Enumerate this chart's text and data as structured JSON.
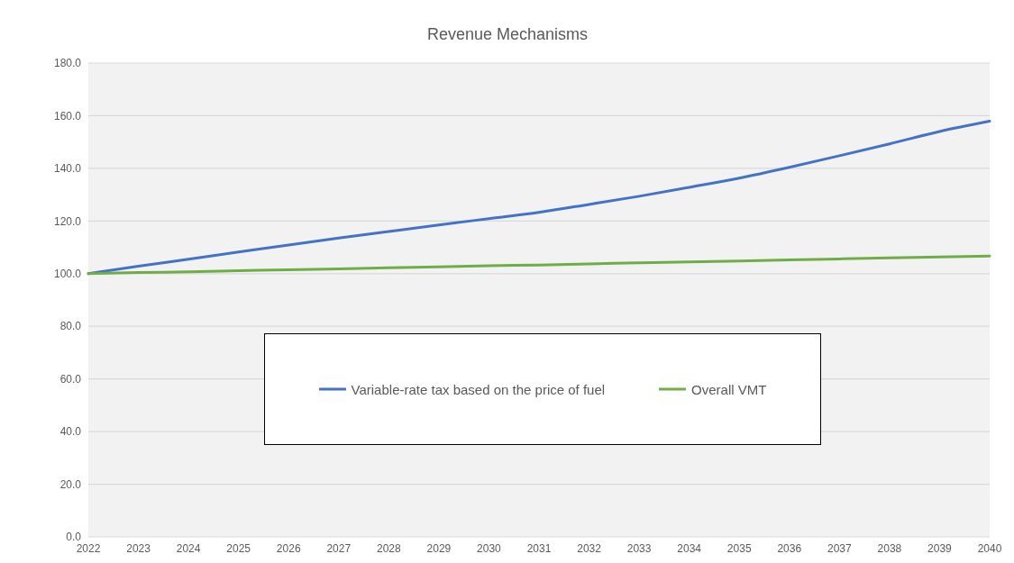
{
  "chart_data": {
    "type": "line",
    "title": "Revenue Mechanisms",
    "categories": [
      "2022",
      "2023",
      "2024",
      "2025",
      "2026",
      "2027",
      "2028",
      "2029",
      "2030",
      "2031",
      "2032",
      "2033",
      "2034",
      "2035",
      "2036",
      "2037",
      "2038",
      "2039",
      "2040"
    ],
    "series": [
      {
        "name": "Variable-rate tax based on the price of fuel",
        "color": "#4472c4",
        "values": [
          100,
          102.8,
          105.5,
          108.2,
          110.9,
          113.5,
          116.0,
          118.5,
          120.9,
          123.3,
          126.3,
          129.4,
          132.8,
          136.3,
          140.4,
          144.8,
          149.3,
          154.0,
          157.9
        ]
      },
      {
        "name": "Overall VMT",
        "color": "#70ad47",
        "values": [
          100,
          100.4,
          100.7,
          101.1,
          101.5,
          101.8,
          102.2,
          102.6,
          103.0,
          103.3,
          103.7,
          104.1,
          104.5,
          104.8,
          105.2,
          105.6,
          106.0,
          106.3,
          106.7
        ]
      }
    ],
    "ylim": [
      0,
      180
    ],
    "yticks": [
      {
        "value": 0,
        "label": "0.0"
      },
      {
        "value": 20,
        "label": "20.0"
      },
      {
        "value": 40,
        "label": "40.0"
      },
      {
        "value": 60,
        "label": "60.0"
      },
      {
        "value": 80,
        "label": "80.0"
      },
      {
        "value": 100,
        "label": "100.0"
      },
      {
        "value": 120,
        "label": "120.0"
      },
      {
        "value": 140,
        "label": "140.0"
      },
      {
        "value": 160,
        "label": "160.0"
      },
      {
        "value": 180,
        "label": "180.0"
      }
    ],
    "grid": "y",
    "legend": "center",
    "marker": "none",
    "line_style": "solid"
  }
}
